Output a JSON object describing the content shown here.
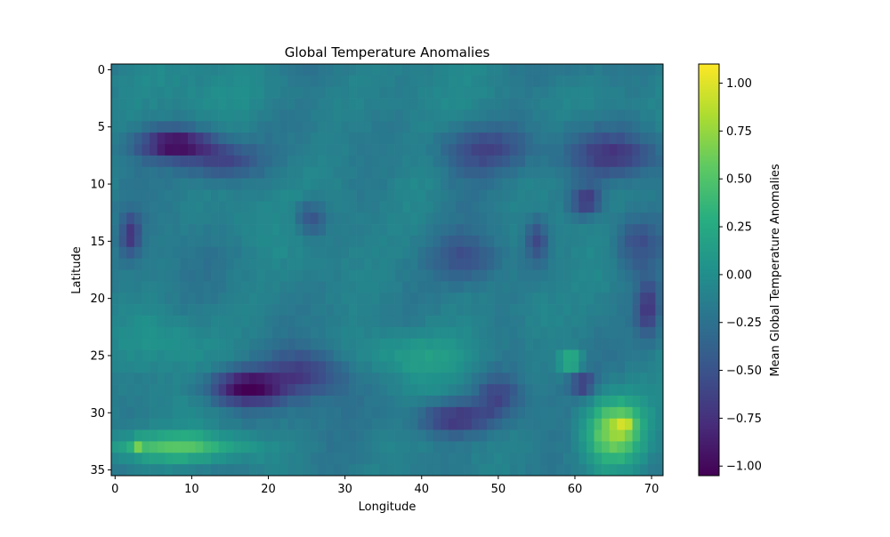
{
  "chart_data": {
    "type": "heatmap",
    "title": "Global Temperature Anomalies",
    "xlabel": "Longitude",
    "ylabel": "Latitude",
    "colorbar_label": "Mean Global Temperature Anomalies",
    "colormap": "viridis",
    "grid": false,
    "y_inverted": true,
    "xlim": [
      -0.5,
      71.5
    ],
    "ylim": [
      35.5,
      -0.5
    ],
    "color_range": [
      -1.05,
      1.1
    ],
    "x_ticks": [
      0,
      10,
      20,
      30,
      40,
      50,
      60,
      70
    ],
    "y_ticks": [
      0,
      5,
      10,
      15,
      20,
      25,
      30,
      35
    ],
    "colorbar_ticks": [
      1.0,
      0.75,
      0.5,
      0.25,
      0.0,
      -0.25,
      -0.5,
      -0.75,
      -1.0
    ],
    "tick_labels": {
      "x": [
        "0",
        "10",
        "20",
        "30",
        "40",
        "50",
        "60",
        "70"
      ],
      "y": [
        "0",
        "5",
        "10",
        "15",
        "20",
        "25",
        "30",
        "35"
      ],
      "colorbar": [
        "1.00",
        "0.75",
        "0.50",
        "0.25",
        "0.00",
        "−0.25",
        "−0.50",
        "−0.75",
        "−1.00"
      ]
    },
    "grid_shape": {
      "rows": 36,
      "cols": 72
    },
    "base_value": -0.15,
    "features": [
      {
        "lat": 6.5,
        "lon": 8,
        "rlat": 1.3,
        "rlon": 5,
        "amp": -0.85
      },
      {
        "lat": 8,
        "lon": 14,
        "rlat": 1.5,
        "rlon": 5,
        "amp": -0.45
      },
      {
        "lat": 7,
        "lon": 48,
        "rlat": 2,
        "rlon": 6,
        "amp": -0.45
      },
      {
        "lat": 7.5,
        "lon": 65,
        "rlat": 2,
        "rlon": 6,
        "amp": -0.55
      },
      {
        "lat": 11.5,
        "lon": 61.5,
        "rlat": 1.3,
        "rlon": 2,
        "amp": -0.6
      },
      {
        "lat": 13,
        "lon": 25.5,
        "rlat": 1.5,
        "rlon": 2,
        "amp": -0.45
      },
      {
        "lat": 14.5,
        "lon": 2,
        "rlat": 1.8,
        "rlon": 1.2,
        "amp": -0.55
      },
      {
        "lat": 15,
        "lon": 55,
        "rlat": 2,
        "rlon": 1.5,
        "amp": -0.45
      },
      {
        "lat": 16.5,
        "lon": 46,
        "rlat": 2,
        "rlon": 4,
        "amp": -0.35
      },
      {
        "lat": 15,
        "lon": 68,
        "rlat": 2.5,
        "rlon": 3,
        "amp": -0.4
      },
      {
        "lat": 21,
        "lon": 69.5,
        "rlat": 2.5,
        "rlon": 1.5,
        "amp": -0.55
      },
      {
        "lat": 27.8,
        "lon": 17,
        "rlat": 1.5,
        "rlon": 5,
        "amp": -0.9
      },
      {
        "lat": 26.5,
        "lon": 25,
        "rlat": 2,
        "rlon": 5,
        "amp": -0.45
      },
      {
        "lat": 30.5,
        "lon": 44,
        "rlat": 1.5,
        "rlon": 5,
        "amp": -0.6
      },
      {
        "lat": 28.5,
        "lon": 50,
        "rlat": 2,
        "rlon": 3,
        "amp": -0.45
      },
      {
        "lat": 27.5,
        "lon": 61,
        "rlat": 1,
        "rlon": 1.5,
        "amp": -0.55
      },
      {
        "lat": 33,
        "lon": 8,
        "rlat": 1.2,
        "rlon": 10,
        "amp": 0.6
      },
      {
        "lat": 32.8,
        "lon": 3,
        "rlat": 0.6,
        "rlon": 0.8,
        "amp": 0.4
      },
      {
        "lat": 31.5,
        "lon": 65,
        "rlat": 3,
        "rlon": 4,
        "amp": 0.9
      },
      {
        "lat": 31,
        "lon": 66.5,
        "rlat": 0.8,
        "rlon": 1.2,
        "amp": 0.35
      },
      {
        "lat": 25.5,
        "lon": 59.5,
        "rlat": 1,
        "rlon": 1.5,
        "amp": 0.6
      },
      {
        "lat": 25,
        "lon": 38,
        "rlat": 2,
        "rlon": 8,
        "amp": 0.25
      },
      {
        "lat": 2,
        "lon": 20,
        "rlat": 2.5,
        "rlon": 14,
        "amp": 0.1
      },
      {
        "lat": 2.5,
        "lon": 62,
        "rlat": 2,
        "rlon": 8,
        "amp": 0.12
      },
      {
        "lat": 12.5,
        "lon": 15,
        "rlat": 3,
        "rlon": 6,
        "amp": 0.12
      },
      {
        "lat": 12,
        "lon": 40,
        "rlat": 6,
        "rlon": 4,
        "amp": 0.1
      },
      {
        "lat": 23.5,
        "lon": 6,
        "rlat": 2.5,
        "rlon": 6,
        "amp": 0.18
      },
      {
        "lat": 21.5,
        "lon": 55,
        "rlat": 2.5,
        "rlon": 3,
        "amp": 0.1
      }
    ]
  }
}
